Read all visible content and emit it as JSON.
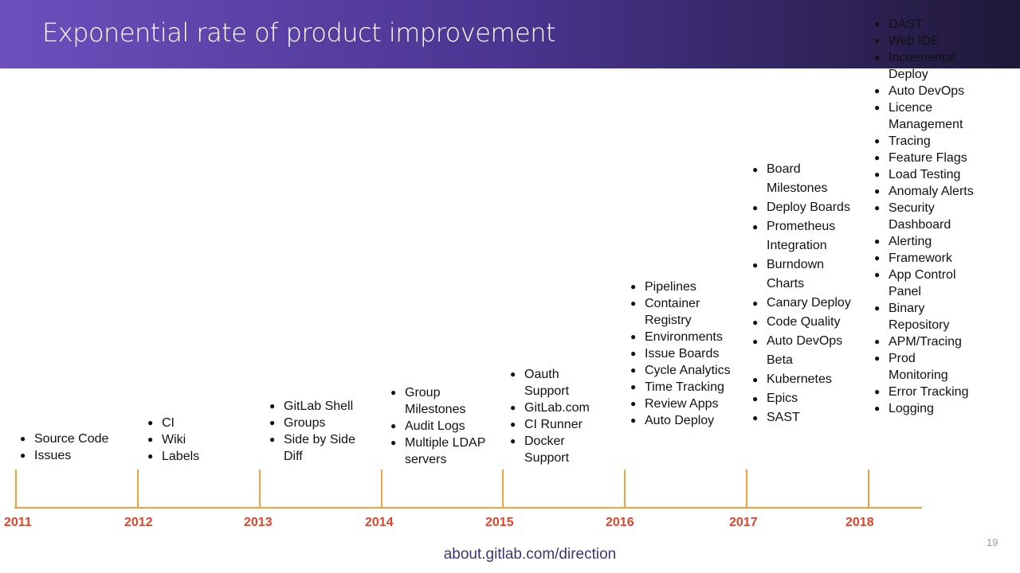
{
  "header": {
    "title": "Exponential rate of product improvement"
  },
  "timeline": [
    {
      "year": "2011",
      "features": [
        "Source Code",
        "Issues"
      ]
    },
    {
      "year": "2012",
      "features": [
        "CI",
        "Wiki",
        "Labels"
      ]
    },
    {
      "year": "2013",
      "features": [
        "GitLab Shell",
        "Groups",
        "Side by Side Diff"
      ]
    },
    {
      "year": "2014",
      "features": [
        "Group Milestones",
        "Audit Logs",
        "Multiple LDAP servers"
      ]
    },
    {
      "year": "2015",
      "features": [
        "Oauth Support",
        "GitLab.com",
        "CI Runner",
        "Docker Support"
      ]
    },
    {
      "year": "2016",
      "features": [
        "Pipelines",
        "Container Registry",
        "Environments",
        "Issue Boards",
        "Cycle Analytics",
        "Time Tracking",
        "Review Apps",
        "Auto Deploy"
      ]
    },
    {
      "year": "2017",
      "features": [
        "Board Milestones",
        "Deploy Boards",
        "Prometheus Integration",
        "Burndown Charts",
        "Canary Deploy",
        "Code Quality",
        "Auto DevOps Beta",
        "Kubernetes",
        "Epics",
        "SAST"
      ]
    },
    {
      "year": "2018",
      "features": [
        "DAST",
        "Web IDE",
        "Incremental Deploy",
        "Auto DevOps",
        "Licence Management",
        "Tracing",
        "Feature Flags",
        "Load Testing",
        "Anomaly Alerts",
        "Security Dashboard",
        "Alerting",
        "Framework",
        "App Control Panel",
        "Binary Repository",
        "APM/Tracing",
        "Prod Monitoring",
        "Error Tracking",
        "Logging"
      ]
    }
  ],
  "footer": {
    "link": "about.gitlab.com/direction",
    "page_number": "19"
  }
}
